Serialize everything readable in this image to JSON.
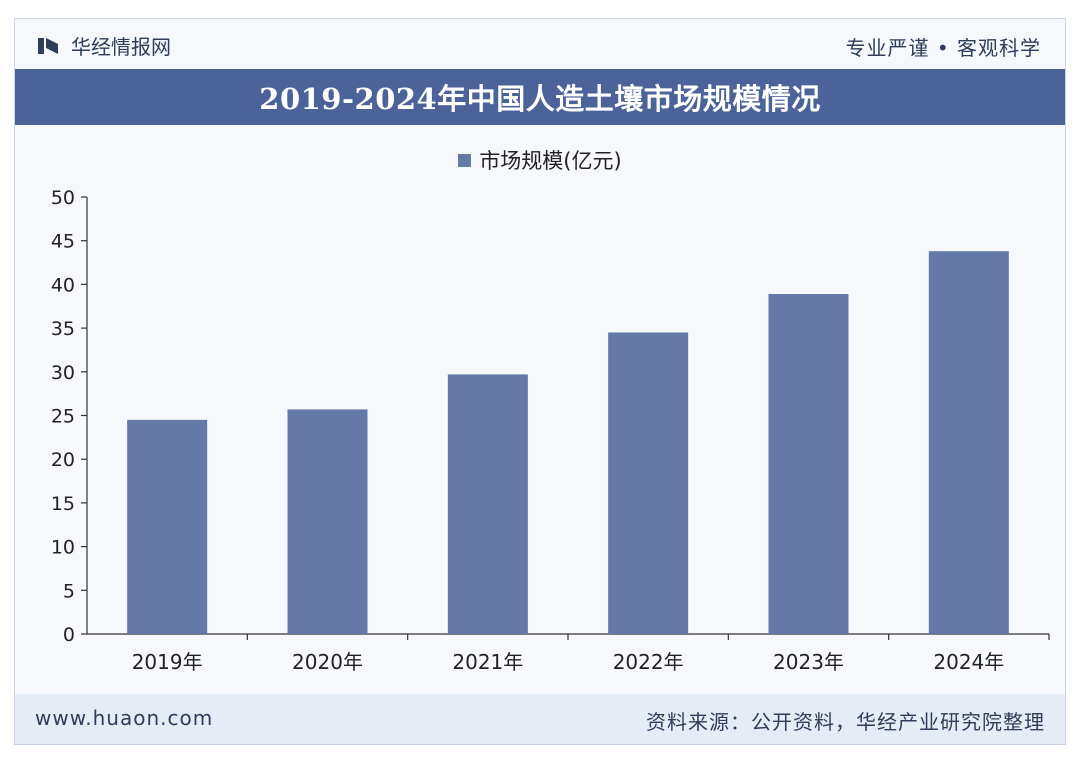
{
  "header": {
    "brand": "华经情报网",
    "slogan": "专业严谨 • 客观科学"
  },
  "title": "2019-2024年中国人造土壤市场规模情况",
  "footer": {
    "site": "www.huaon.com",
    "source": "资料来源：公开资料，华经产业研究院整理"
  },
  "colors": {
    "bar": "#6479a7",
    "title_bar": "#4b6399"
  },
  "chart_data": {
    "type": "bar",
    "categories": [
      "2019年",
      "2020年",
      "2021年",
      "2022年",
      "2023年",
      "2024年"
    ],
    "series": [
      {
        "name": "市场规模(亿元)",
        "values": [
          24.5,
          25.7,
          29.7,
          34.5,
          38.9,
          43.8
        ]
      }
    ],
    "ylim": [
      0,
      50
    ],
    "yticks": [
      0,
      5,
      10,
      15,
      20,
      25,
      30,
      35,
      40,
      45,
      50
    ],
    "grid": false,
    "legend": "top-center"
  }
}
